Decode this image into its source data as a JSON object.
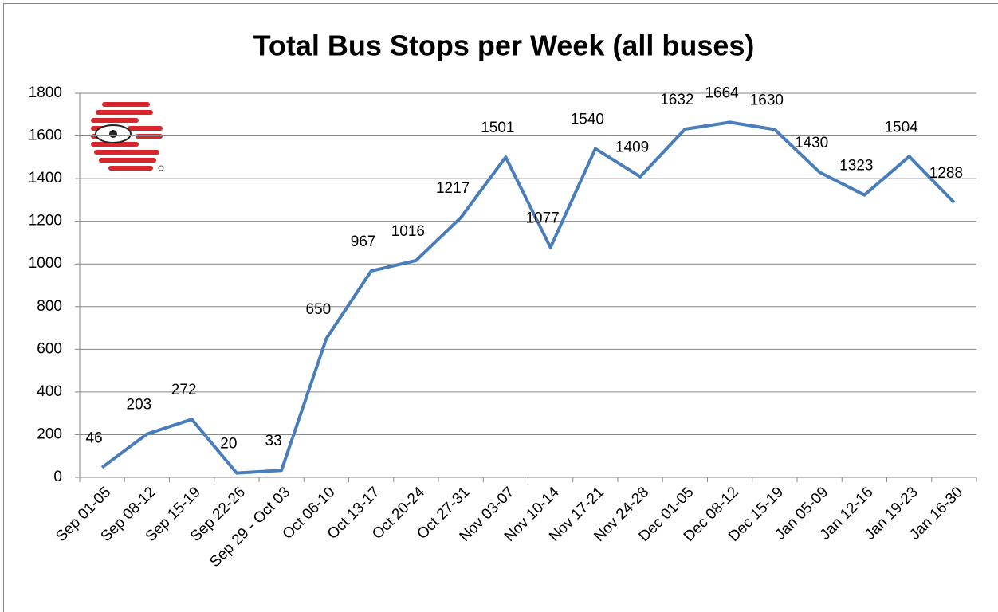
{
  "chart_data": {
    "type": "line",
    "title": "Total Bus Stops per Week (all buses)",
    "categories": [
      "Sep 01-05",
      "Sep 08-12",
      "Sep 15-19",
      "Sep 22-26",
      "Sep 29 - Oct 03",
      "Oct 06-10",
      "Oct 13-17",
      "Oct 20-24",
      "Oct 27-31",
      "Nov 03-07",
      "Nov 10-14",
      "Nov 17-21",
      "Nov 24-28",
      "Dec 01-05",
      "Dec 08-12",
      "Dec 15-19",
      "Jan 05-09",
      "Jan 12-16",
      "Jan 19-23",
      "Jan 16-30"
    ],
    "values": [
      46,
      203,
      272,
      20,
      33,
      650,
      967,
      1016,
      1217,
      1501,
      1077,
      1540,
      1409,
      1632,
      1664,
      1630,
      1430,
      1323,
      1504,
      1288
    ],
    "color": "#4a7ebb",
    "ylim": [
      0,
      1800
    ],
    "yticks": [
      0,
      200,
      400,
      600,
      800,
      1000,
      1200,
      1400,
      1600,
      1800
    ],
    "grid": true
  }
}
